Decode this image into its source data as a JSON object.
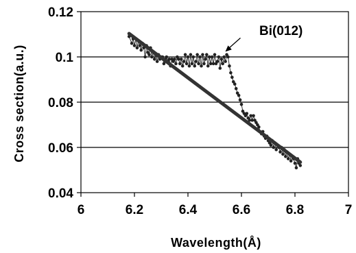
{
  "chart_data": {
    "type": "scatter",
    "title": "",
    "xlabel": "Wavelength(Å)",
    "ylabel": "Cross section(a.u.)",
    "xlim": [
      6,
      7
    ],
    "ylim": [
      0.04,
      0.12
    ],
    "x_ticks": [
      "6",
      "6.2",
      "6.4",
      "6.6",
      "6.8",
      "7"
    ],
    "y_ticks": [
      "0.04",
      "0.06",
      "0.08",
      "0.1",
      "0.12"
    ],
    "grid": "horizontal",
    "legend": "none",
    "annotation": {
      "text": "Bi(012)",
      "points_to": [
        6.55,
        0.1005
      ]
    },
    "series": [
      {
        "marker": "dot-with-line",
        "color": "#333333",
        "x": [
          6.18,
          6.19,
          6.195,
          6.2,
          6.205,
          6.21,
          6.215,
          6.22,
          6.225,
          6.23,
          6.235,
          6.24,
          6.245,
          6.25,
          6.255,
          6.26,
          6.265,
          6.27,
          6.275,
          6.28,
          6.285,
          6.29,
          6.295,
          6.3,
          6.305,
          6.31,
          6.315,
          6.32,
          6.325,
          6.33,
          6.335,
          6.34,
          6.345,
          6.35,
          6.355,
          6.36,
          6.365,
          6.37,
          6.375,
          6.38,
          6.385,
          6.39,
          6.395,
          6.4,
          6.405,
          6.41,
          6.415,
          6.42,
          6.425,
          6.43,
          6.435,
          6.44,
          6.445,
          6.45,
          6.455,
          6.46,
          6.465,
          6.47,
          6.475,
          6.48,
          6.485,
          6.49,
          6.495,
          6.5,
          6.505,
          6.51,
          6.515,
          6.52,
          6.525,
          6.53,
          6.535,
          6.54,
          6.545,
          6.55,
          6.555,
          6.56,
          6.565,
          6.57,
          6.575,
          6.58,
          6.585,
          6.59,
          6.595,
          6.6,
          6.605,
          6.61,
          6.615,
          6.62,
          6.625,
          6.63,
          6.635,
          6.64,
          6.645,
          6.65,
          6.655,
          6.66,
          6.665,
          6.67,
          6.675,
          6.68,
          6.685,
          6.69,
          6.695,
          6.7,
          6.705,
          6.71,
          6.715,
          6.72,
          6.725,
          6.73,
          6.735,
          6.74,
          6.745,
          6.75,
          6.755,
          6.76,
          6.765,
          6.77,
          6.775,
          6.78,
          6.785,
          6.79,
          6.795,
          6.8,
          6.805,
          6.81,
          6.815,
          6.82
        ],
        "y": [
          0.109,
          0.106,
          0.108,
          0.105,
          0.108,
          0.104,
          0.107,
          0.105,
          0.103,
          0.106,
          0.104,
          0.1,
          0.105,
          0.102,
          0.101,
          0.104,
          0.1,
          0.102,
          0.099,
          0.101,
          0.098,
          0.101,
          0.099,
          0.1,
          0.1,
          0.097,
          0.099,
          0.1,
          0.098,
          0.099,
          0.096,
          0.099,
          0.098,
          0.099,
          0.097,
          0.1,
          0.099,
          0.097,
          0.099,
          0.096,
          0.098,
          0.101,
          0.097,
          0.1,
          0.096,
          0.101,
          0.097,
          0.1,
          0.096,
          0.098,
          0.101,
          0.097,
          0.1,
          0.096,
          0.101,
          0.097,
          0.099,
          0.101,
          0.096,
          0.1,
          0.097,
          0.1,
          0.097,
          0.101,
          0.097,
          0.098,
          0.1,
          0.095,
          0.099,
          0.097,
          0.1,
          0.098,
          0.101,
          0.1,
          0.096,
          0.093,
          0.091,
          0.089,
          0.088,
          0.086,
          0.084,
          0.083,
          0.081,
          0.079,
          0.076,
          0.075,
          0.074,
          0.075,
          0.073,
          0.072,
          0.074,
          0.072,
          0.074,
          0.072,
          0.071,
          0.07,
          0.069,
          0.067,
          0.066,
          0.067,
          0.065,
          0.064,
          0.065,
          0.063,
          0.062,
          0.061,
          0.063,
          0.06,
          0.062,
          0.059,
          0.061,
          0.06,
          0.058,
          0.06,
          0.057,
          0.059,
          0.056,
          0.058,
          0.055,
          0.057,
          0.054,
          0.056,
          0.055,
          0.053,
          0.051,
          0.055,
          0.053,
          0.052
        ]
      },
      {
        "marker": "line",
        "color": "#333333",
        "x": [
          6.18,
          6.82
        ],
        "y": [
          0.1103,
          0.0535
        ]
      }
    ]
  }
}
